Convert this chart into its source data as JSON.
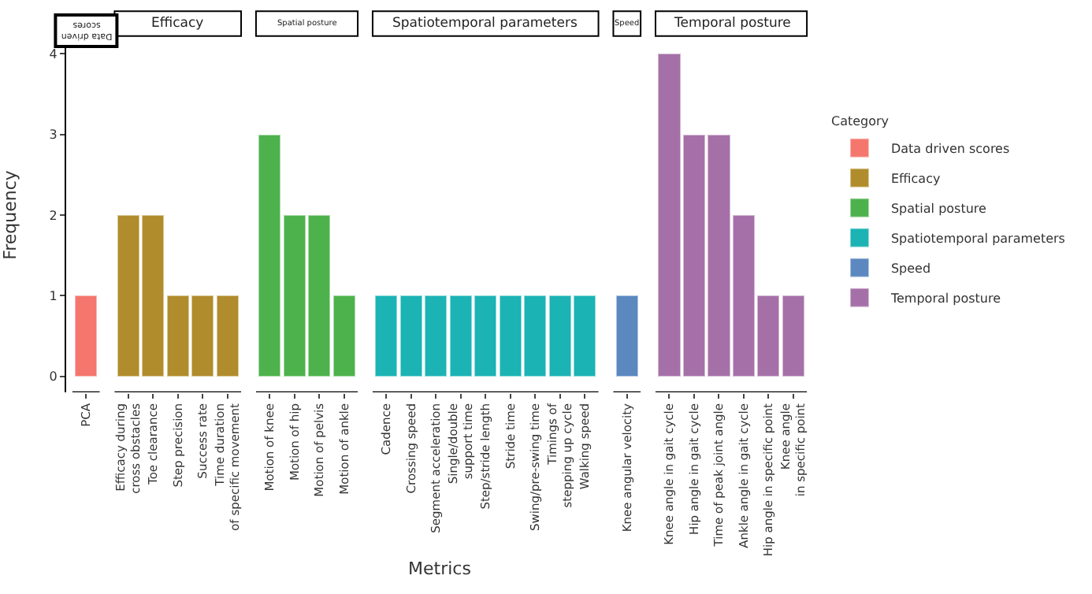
{
  "chart_data": {
    "type": "bar",
    "xlabel": "Metrics",
    "ylabel": "Frequency",
    "legend_title": "Category",
    "legend": "right",
    "grid": false,
    "stacked": true,
    "ylim": [
      -0.2,
      4.2
    ],
    "yticks": [
      0,
      1,
      2,
      3,
      4
    ],
    "categories": [
      "PCA",
      "Efficacy during\ncross obstacles",
      "Toe clearance",
      "Step precision",
      "Success rate",
      "Time duration\nof specific movement",
      "Motion of knee",
      "Motion of hip",
      "Motion of pelvis",
      "Motion of ankle",
      "Cadence",
      "Crossing speed",
      "Segment acceleration",
      "Single/double\nsupport time",
      "Step/stride length",
      "Stride time",
      "Swing/pre-swing time",
      "Timings of\nstepping up cycle",
      "Walking speed",
      "Knee angular velocity",
      "Knee angle in gait cycle",
      "Hip angle in gait cycle",
      "Time of peak joint angle",
      "Ankle angle in gait cycle",
      "Hip angle in specific point",
      "Knee angle\nin specific point"
    ],
    "series": [
      {
        "name": "Data driven scores",
        "color": "#f4766d",
        "values": [
          1,
          null,
          null,
          null,
          null,
          null,
          null,
          null,
          null,
          null,
          null,
          null,
          null,
          null,
          null,
          null,
          null,
          null,
          null,
          null,
          null,
          null,
          null,
          null,
          null,
          null
        ]
      },
      {
        "name": "Efficacy",
        "color": "#b08c2c",
        "values": [
          null,
          2,
          2,
          1,
          1,
          1,
          null,
          null,
          null,
          null,
          null,
          null,
          null,
          null,
          null,
          null,
          null,
          null,
          null,
          null,
          null,
          null,
          null,
          null,
          null,
          null
        ]
      },
      {
        "name": "Spatial posture",
        "color": "#4db24c",
        "values": [
          null,
          null,
          null,
          null,
          null,
          null,
          3,
          2,
          2,
          1,
          null,
          null,
          null,
          null,
          null,
          null,
          null,
          null,
          null,
          null,
          null,
          null,
          null,
          null,
          null,
          null
        ]
      },
      {
        "name": "Spatiotemporal parameters",
        "color": "#1bb3b4",
        "values": [
          null,
          null,
          null,
          null,
          null,
          null,
          null,
          null,
          null,
          null,
          1,
          1,
          1,
          1,
          1,
          1,
          1,
          1,
          1,
          null,
          null,
          null,
          null,
          null,
          null,
          null
        ]
      },
      {
        "name": "Speed",
        "color": "#5b88bf",
        "values": [
          null,
          null,
          null,
          null,
          null,
          null,
          null,
          null,
          null,
          null,
          null,
          null,
          null,
          null,
          null,
          null,
          null,
          null,
          null,
          1,
          null,
          null,
          null,
          null,
          null,
          null
        ]
      },
      {
        "name": "Temporal posture",
        "color": "#a570a8",
        "values": [
          null,
          null,
          null,
          null,
          null,
          null,
          null,
          null,
          null,
          null,
          null,
          null,
          null,
          null,
          null,
          null,
          null,
          null,
          null,
          null,
          4,
          3,
          3,
          2,
          1,
          1
        ]
      }
    ]
  }
}
